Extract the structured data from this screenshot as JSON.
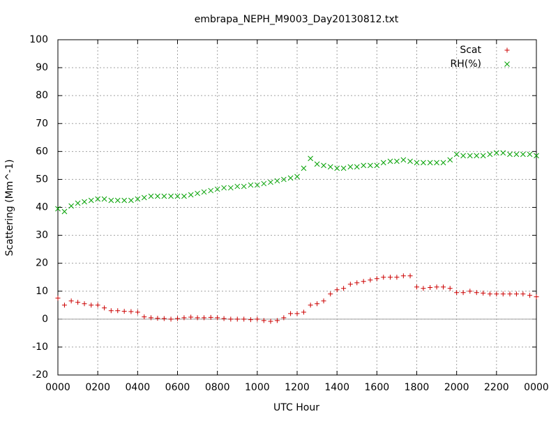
{
  "chart_data": {
    "type": "scatter",
    "title": "embrapa_NEPH_M9003_Day20130812.txt",
    "x_label": "UTC Hour",
    "y_label": "Scattering (Mm^-1)",
    "x": [
      0,
      0.33,
      0.67,
      1,
      1.33,
      1.67,
      2,
      2.33,
      2.67,
      3,
      3.33,
      3.67,
      4,
      4.33,
      4.67,
      5,
      5.33,
      5.67,
      6,
      6.33,
      6.67,
      7,
      7.33,
      7.67,
      8,
      8.33,
      8.67,
      9,
      9.33,
      9.67,
      10,
      10.33,
      10.67,
      11,
      11.33,
      11.67,
      12,
      12.33,
      12.67,
      13,
      13.33,
      13.67,
      14,
      14.33,
      14.67,
      15,
      15.33,
      15.67,
      16,
      16.33,
      16.67,
      17,
      17.33,
      17.67,
      18,
      18.33,
      18.67,
      19,
      19.33,
      19.67,
      20,
      20.33,
      20.67,
      21,
      21.33,
      21.67,
      22,
      22.33,
      22.67,
      23,
      23.33,
      23.67,
      24
    ],
    "series": [
      {
        "name": "Scat",
        "color": "#cc0000",
        "marker": "plus",
        "values": [
          7.5,
          5,
          6.5,
          6,
          5.5,
          5,
          5,
          4,
          3,
          3,
          2.8,
          2.7,
          2.5,
          0.8,
          0.5,
          0.3,
          0.2,
          0,
          0.2,
          0.5,
          0.7,
          0.5,
          0.5,
          0.6,
          0.5,
          0.2,
          0,
          0,
          0,
          -0.2,
          0,
          -0.5,
          -0.8,
          -0.5,
          0.5,
          2,
          2,
          2.5,
          5,
          5.5,
          6.5,
          9,
          10.5,
          11,
          12.5,
          13,
          13.5,
          14,
          14.5,
          15,
          15,
          15,
          15.5,
          15.5,
          11.5,
          11,
          11.3,
          11.5,
          11.5,
          11,
          9.5,
          9.5,
          10,
          9.5,
          9.3,
          9,
          9,
          9,
          9,
          9,
          9,
          8.5,
          8
        ]
      },
      {
        "name": "RH(%)",
        "color": "#00a000",
        "marker": "cross",
        "values": [
          39.5,
          38.5,
          40.5,
          41.5,
          42,
          42.5,
          43,
          43,
          42.5,
          42.5,
          42.5,
          42.5,
          43,
          43.5,
          44,
          44,
          44,
          44,
          44,
          44,
          44.5,
          45,
          45.5,
          46,
          46.5,
          47,
          47,
          47.5,
          47.5,
          48,
          48,
          48.5,
          49,
          49.5,
          50,
          50.5,
          51,
          54,
          57.5,
          55.5,
          55,
          54.5,
          54,
          54,
          54.5,
          54.5,
          55,
          55,
          55,
          56,
          56.5,
          56.5,
          57,
          56.5,
          56,
          56,
          56,
          56,
          56,
          57,
          59,
          58.5,
          58.5,
          58.5,
          58.5,
          59,
          59.5,
          59.5,
          59,
          59,
          59,
          59,
          58.5
        ]
      }
    ],
    "xlim": [
      0,
      24
    ],
    "xticks": [
      {
        "value": 0,
        "label": "0000"
      },
      {
        "value": 2,
        "label": "0200"
      },
      {
        "value": 4,
        "label": "0400"
      },
      {
        "value": 6,
        "label": "0600"
      },
      {
        "value": 8,
        "label": "0800"
      },
      {
        "value": 10,
        "label": "1000"
      },
      {
        "value": 12,
        "label": "1200"
      },
      {
        "value": 14,
        "label": "1400"
      },
      {
        "value": 16,
        "label": "1600"
      },
      {
        "value": 18,
        "label": "1800"
      },
      {
        "value": 20,
        "label": "2000"
      },
      {
        "value": 22,
        "label": "2200"
      },
      {
        "value": 24,
        "label": "0000"
      }
    ],
    "ylim": [
      -20,
      100
    ],
    "yticks": [
      -20,
      -10,
      0,
      10,
      20,
      30,
      40,
      50,
      60,
      70,
      80,
      90,
      100
    ],
    "grid": true,
    "legend": "upper right"
  }
}
